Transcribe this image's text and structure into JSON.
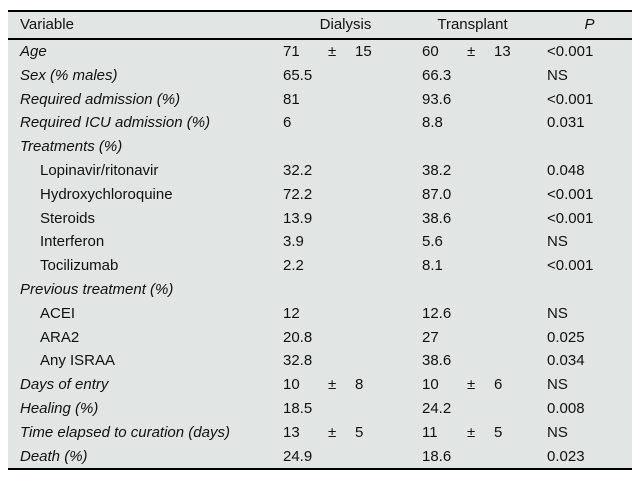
{
  "table": {
    "headers": {
      "variable": "Variable",
      "dialysis": "Dialysis",
      "transplant": "Transplant",
      "p": "P"
    },
    "plus_minus": "±",
    "rows": [
      {
        "label": "Age",
        "style": "main",
        "dialysis": {
          "value": "71",
          "sd": "15"
        },
        "transplant": {
          "value": "60",
          "sd": "13"
        },
        "p": "<0.001"
      },
      {
        "label": "Sex (% males)",
        "style": "main",
        "dialysis": {
          "value": "65.5"
        },
        "transplant": {
          "value": "66.3"
        },
        "p": "NS"
      },
      {
        "label": "Required admission (%)",
        "style": "main",
        "dialysis": {
          "value": "81"
        },
        "transplant": {
          "value": "93.6"
        },
        "p": "<0.001"
      },
      {
        "label": "Required ICU admission (%)",
        "style": "main",
        "dialysis": {
          "value": "6"
        },
        "transplant": {
          "value": "8.8"
        },
        "p": "0.031"
      },
      {
        "label": "Treatments (%)",
        "style": "section",
        "p": ""
      },
      {
        "label": "Lopinavir/ritonavir",
        "style": "sub",
        "dialysis": {
          "value": "32.2"
        },
        "transplant": {
          "value": "38.2"
        },
        "p": "0.048"
      },
      {
        "label": "Hydroxychloroquine",
        "style": "sub",
        "dialysis": {
          "value": "72.2"
        },
        "transplant": {
          "value": "87.0"
        },
        "p": "<0.001"
      },
      {
        "label": "Steroids",
        "style": "sub",
        "dialysis": {
          "value": "13.9"
        },
        "transplant": {
          "value": "38.6"
        },
        "p": "<0.001"
      },
      {
        "label": "Interferon",
        "style": "sub",
        "dialysis": {
          "value": "3.9"
        },
        "transplant": {
          "value": "5.6"
        },
        "p": "NS"
      },
      {
        "label": "Tocilizumab",
        "style": "sub",
        "dialysis": {
          "value": "2.2"
        },
        "transplant": {
          "value": "8.1"
        },
        "p": "<0.001"
      },
      {
        "label": "Previous treatment (%)",
        "style": "section",
        "p": ""
      },
      {
        "label": "ACEI",
        "style": "sub",
        "dialysis": {
          "value": "12"
        },
        "transplant": {
          "value": "12.6"
        },
        "p": "NS"
      },
      {
        "label": "ARA2",
        "style": "sub",
        "dialysis": {
          "value": "20.8"
        },
        "transplant": {
          "value": "27"
        },
        "p": "0.025"
      },
      {
        "label": "Any ISRAA",
        "style": "sub",
        "dialysis": {
          "value": "32.8"
        },
        "transplant": {
          "value": "38.6"
        },
        "p": "0.034"
      },
      {
        "label": "Days of entry",
        "style": "main",
        "dialysis": {
          "value": "10",
          "sd": "8"
        },
        "transplant": {
          "value": "10",
          "sd": "6"
        },
        "p": "NS"
      },
      {
        "label": "Healing (%)",
        "style": "main",
        "dialysis": {
          "value": "18.5"
        },
        "transplant": {
          "value": "24.2"
        },
        "p": "0.008"
      },
      {
        "label": "Time elapsed to curation (days)",
        "style": "main",
        "dialysis": {
          "value": "13",
          "sd": "5"
        },
        "transplant": {
          "value": "11",
          "sd": "5"
        },
        "p": "NS"
      },
      {
        "label": "Death (%)",
        "style": "main",
        "dialysis": {
          "value": "24.9"
        },
        "transplant": {
          "value": "18.6"
        },
        "p": "0.023"
      }
    ]
  },
  "colors": {
    "table_background": "#e1e5e3",
    "rule": "#000000",
    "text": "#111111",
    "page_background": "#ffffff"
  }
}
